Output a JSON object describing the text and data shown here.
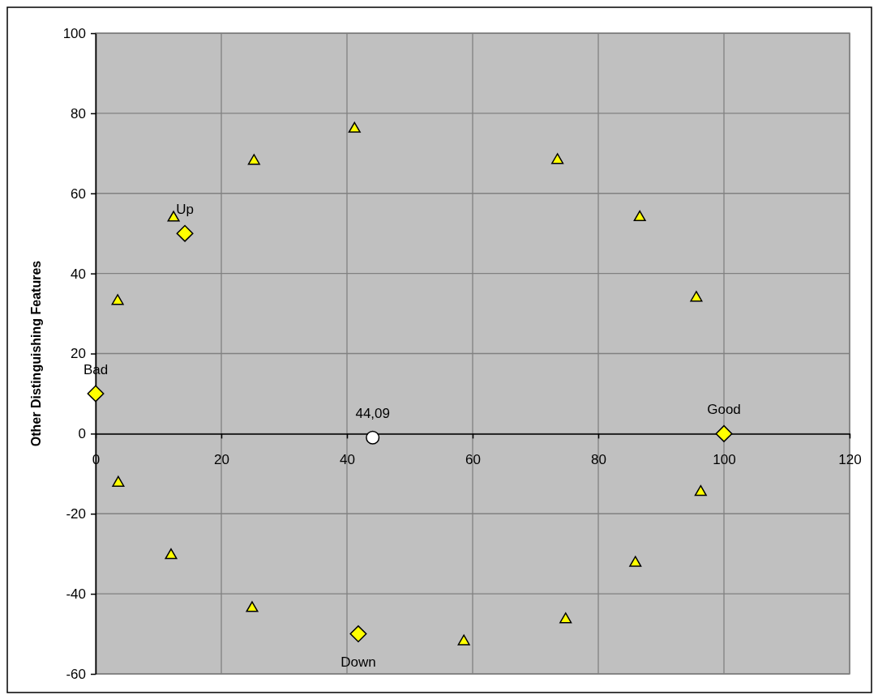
{
  "chart_data": {
    "type": "scatter",
    "ylabel": "Other Distinguishing Features",
    "xlim": [
      0,
      120
    ],
    "xticks": [
      0,
      20,
      40,
      60,
      80,
      100,
      120
    ],
    "ylim": [
      -60,
      100
    ],
    "yticks": [
      -60,
      -40,
      -20,
      0,
      20,
      40,
      60,
      80,
      100
    ],
    "grid": true,
    "series": [
      {
        "marker": "triangle",
        "color": "#ffff00",
        "x": [
          3.5,
          12.4,
          25.2,
          41.2,
          73.5,
          86.6,
          95.6,
          3.6,
          12.0,
          24.9,
          58.6,
          74.8,
          85.9,
          96.3
        ],
        "values": [
          33.5,
          54.3,
          68.5,
          76.5,
          68.7,
          54.4,
          34.3,
          -11.9,
          -30,
          -43.2,
          -51.5,
          -46,
          -31.9,
          -14.2
        ]
      },
      {
        "marker": "diamond",
        "color": "#ffff00",
        "x": [
          0,
          14.2,
          41.8,
          100
        ],
        "values": [
          10,
          50,
          -50,
          0
        ]
      },
      {
        "marker": "circle",
        "color": "#ffffff",
        "x": [
          44.09
        ],
        "values": [
          -1
        ]
      }
    ],
    "annotations": [
      {
        "text": "Bad",
        "x": 0,
        "y": 10
      },
      {
        "text": "Up",
        "x": 14.2,
        "y": 50
      },
      {
        "text": "Down",
        "x": 41.8,
        "y": -50
      },
      {
        "text": "Good",
        "x": 100,
        "y": 0
      },
      {
        "text": "44,09",
        "x": 44.09,
        "y": -1
      }
    ]
  }
}
